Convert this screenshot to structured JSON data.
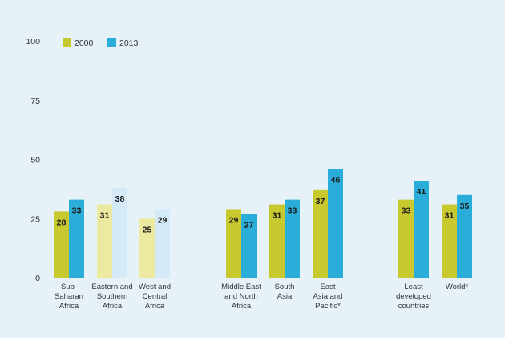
{
  "chart_data": {
    "type": "bar",
    "ylim": [
      0,
      100
    ],
    "yticks": [
      0,
      25,
      50,
      75,
      100
    ],
    "legend_position": "top-left",
    "series": [
      {
        "name": "2000",
        "color": "#c8c92e",
        "faded_color": "#eceaa0"
      },
      {
        "name": "2013",
        "color": "#2aadd9",
        "faded_color": "#d4eaf7"
      }
    ],
    "categories": [
      {
        "label": [
          "Sub-",
          "Saharan",
          "Africa"
        ],
        "values": [
          28,
          33
        ],
        "faded": false
      },
      {
        "label": [
          "Eastern and",
          "Southern",
          "Africa"
        ],
        "values": [
          31,
          38
        ],
        "faded": true
      },
      {
        "label": [
          "West and",
          "Central",
          "Africa"
        ],
        "values": [
          25,
          29
        ],
        "faded": true
      },
      {
        "label": [
          "Middle East",
          "and North",
          "Africa"
        ],
        "values": [
          29,
          27
        ],
        "faded": false
      },
      {
        "label": [
          "South",
          "Asia"
        ],
        "values": [
          31,
          33
        ],
        "faded": false
      },
      {
        "label": [
          "East",
          "Asia and",
          "Pacific*"
        ],
        "values": [
          37,
          46
        ],
        "faded": false
      },
      {
        "label": [
          "Least",
          "developed",
          "countries"
        ],
        "values": [
          33,
          41
        ],
        "faded": false
      },
      {
        "label": [
          "World*"
        ],
        "values": [
          31,
          35
        ],
        "faded": false
      }
    ]
  }
}
